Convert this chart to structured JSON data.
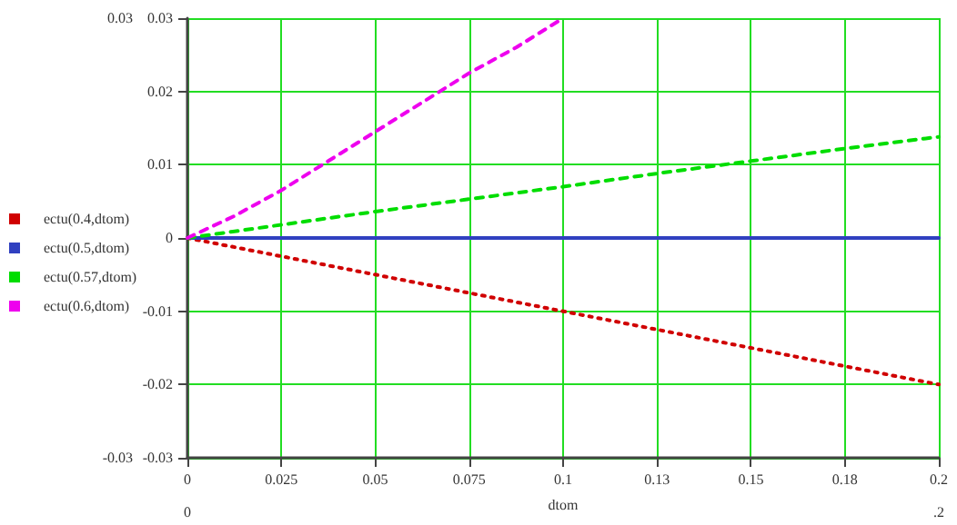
{
  "chart_data": {
    "type": "line",
    "xlabel": "dtom",
    "x": [
      0,
      0.025,
      0.05,
      0.075,
      0.1,
      0.125,
      0.15,
      0.175,
      0.2
    ],
    "series": [
      {
        "name": "ectu(0.4,dtom)",
        "color": "#d00000",
        "line_style": "dotted",
        "values": [
          0,
          -0.0025,
          -0.005,
          -0.0075,
          -0.01,
          -0.0125,
          -0.015,
          -0.0175,
          -0.02
        ]
      },
      {
        "name": "ectu(0.5,dtom)",
        "color": "#3040c0",
        "line_style": "solid",
        "values": [
          0,
          0,
          0,
          0,
          0,
          0,
          0,
          0,
          0
        ]
      },
      {
        "name": "ectu(0.57,dtom)",
        "color": "#00dd00",
        "line_style": "dashed",
        "values": [
          0,
          0.0018,
          0.0036,
          0.0053,
          0.007,
          0.0088,
          0.0105,
          0.0122,
          0.0138
        ]
      },
      {
        "name": "ectu(0.6,dtom)",
        "color": "#ee00ee",
        "line_style": "dashed",
        "x": [
          0,
          0.0125,
          0.025,
          0.0375,
          0.05,
          0.0625,
          0.075,
          0.0875,
          0.1
        ],
        "values": [
          0,
          0.003,
          0.0065,
          0.0105,
          0.0145,
          0.0185,
          0.0225,
          0.026,
          0.03
        ]
      }
    ],
    "xlim": [
      0,
      0.2
    ],
    "xticks": [
      0,
      0.025,
      0.05,
      0.075,
      0.1,
      {
        "value": 0.125,
        "label": "0.13"
      },
      0.15,
      {
        "value": 0.175,
        "label": "0.18"
      },
      0.2
    ],
    "x2lim": [
      0,
      0.2
    ],
    "x2ticks": [
      0,
      {
        "value": 0.2,
        "label": ".2"
      }
    ],
    "ylim": [
      -0.03,
      0.03
    ],
    "yticks": [
      -0.03,
      -0.02,
      -0.01,
      0,
      0.01,
      0.02,
      0.03
    ],
    "y2lim": [
      -0.03,
      0.03
    ],
    "y2ticks": [
      -0.03,
      0.03
    ],
    "grid": true,
    "legend": "left",
    "marker": "none"
  }
}
